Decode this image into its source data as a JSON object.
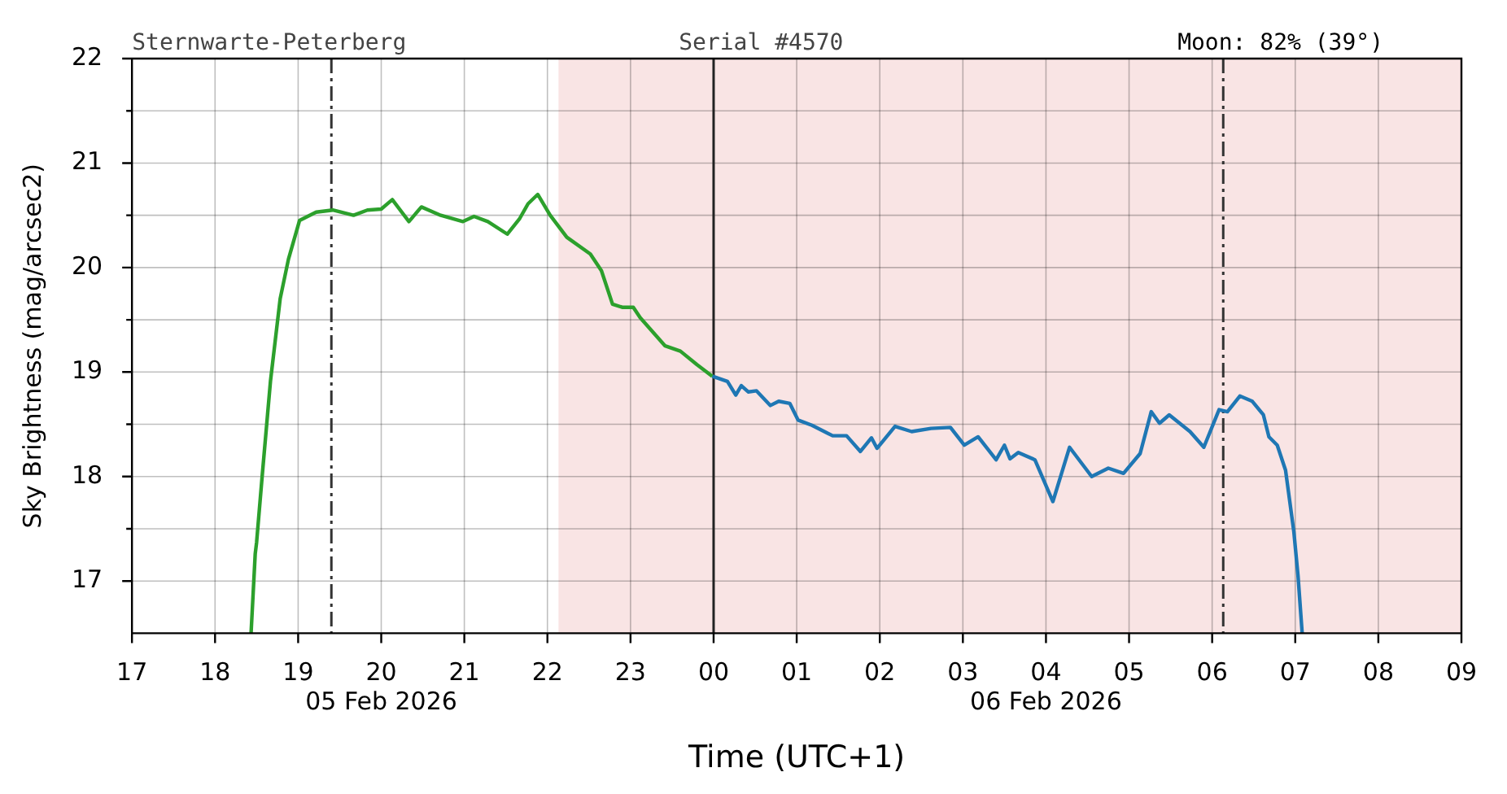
{
  "chart_data": {
    "type": "line",
    "xlabel": "Time (UTC+1)",
    "ylabel": "Sky Brightness (mag/arcsec2)",
    "annotations": [
      "Sternwarte-Peterberg",
      "Serial #4570",
      "Moon: 82% (39°)"
    ],
    "xlim": [
      "2026-02-05T17:00",
      "2026-02-06T09:00"
    ],
    "xticks": [
      {
        "value": "2026-02-05T17:00",
        "label": "17"
      },
      {
        "value": "2026-02-05T18:00",
        "label": "18"
      },
      {
        "value": "2026-02-05T19:00",
        "label": "19"
      },
      {
        "value": "2026-02-05T20:00",
        "label": "20\n05 Feb 2026"
      },
      {
        "value": "2026-02-05T21:00",
        "label": "21"
      },
      {
        "value": "2026-02-05T22:00",
        "label": "22"
      },
      {
        "value": "2026-02-05T23:00",
        "label": "23"
      },
      {
        "value": "2026-02-06T00:00",
        "label": "00"
      },
      {
        "value": "2026-02-06T01:00",
        "label": "01"
      },
      {
        "value": "2026-02-06T02:00",
        "label": "02"
      },
      {
        "value": "2026-02-06T03:00",
        "label": "03"
      },
      {
        "value": "2026-02-06T04:00",
        "label": "04\n06 Feb 2026"
      },
      {
        "value": "2026-02-06T05:00",
        "label": "05"
      },
      {
        "value": "2026-02-06T06:00",
        "label": "06"
      },
      {
        "value": "2026-02-06T07:00",
        "label": "07"
      },
      {
        "value": "2026-02-06T08:00",
        "label": "08"
      },
      {
        "value": "2026-02-06T09:00",
        "label": "09"
      }
    ],
    "ylim": [
      16.5,
      22
    ],
    "yticks": [
      17,
      {
        "value": 17.5,
        "label": null
      },
      18,
      {
        "value": 18.5,
        "label": null
      },
      19,
      {
        "value": 19.5,
        "label": null
      },
      20,
      {
        "value": 20.5,
        "label": null
      },
      21,
      {
        "value": 21.5,
        "label": null
      },
      22
    ],
    "grid": true,
    "legend": false,
    "marker": "none",
    "line_style": "solid",
    "series": [
      {
        "color": "#2ca02c",
        "x": [
          "2026-02-05T18:26",
          "2026-02-05T18:29",
          "2026-02-05T18:30",
          "2026-02-05T18:34",
          "2026-02-05T18:40",
          "2026-02-05T18:47",
          "2026-02-05T18:53",
          "2026-02-05T19:01",
          "2026-02-05T19:13",
          "2026-02-05T19:25",
          "2026-02-05T19:40",
          "2026-02-05T19:50",
          "2026-02-05T20:00",
          "2026-02-05T20:08",
          "2026-02-05T20:20",
          "2026-02-05T20:29",
          "2026-02-05T20:43",
          "2026-02-05T20:59",
          "2026-02-05T21:07",
          "2026-02-05T21:17",
          "2026-02-05T21:31",
          "2026-02-05T21:40",
          "2026-02-05T21:46",
          "2026-02-05T21:53",
          "2026-02-05T22:02",
          "2026-02-05T22:14",
          "2026-02-05T22:31",
          "2026-02-05T22:39",
          "2026-02-05T22:47",
          "2026-02-05T22:54",
          "2026-02-05T23:02",
          "2026-02-05T23:07",
          "2026-02-05T23:25",
          "2026-02-05T23:36",
          "2026-02-05T23:48",
          "2026-02-05T23:59"
        ],
        "values": [
          16.5,
          17.26,
          17.37,
          18.0,
          18.91,
          19.7,
          20.08,
          20.45,
          20.53,
          20.55,
          20.5,
          20.55,
          20.56,
          20.65,
          20.44,
          20.58,
          20.5,
          20.44,
          20.49,
          20.44,
          20.32,
          20.47,
          20.61,
          20.7,
          20.5,
          20.29,
          20.13,
          19.97,
          19.65,
          19.62,
          19.62,
          19.52,
          19.25,
          19.2,
          19.07,
          18.96
        ]
      },
      {
        "color": "#1f77b4",
        "x": [
          "2026-02-05T23:59",
          "2026-02-06T00:10",
          "2026-02-06T00:16",
          "2026-02-06T00:20",
          "2026-02-06T00:25",
          "2026-02-06T00:31",
          "2026-02-06T00:41",
          "2026-02-06T00:47",
          "2026-02-06T00:55",
          "2026-02-06T01:01",
          "2026-02-06T01:11",
          "2026-02-06T01:26",
          "2026-02-06T01:36",
          "2026-02-06T01:46",
          "2026-02-06T01:54",
          "2026-02-06T01:58",
          "2026-02-06T02:11",
          "2026-02-06T02:23",
          "2026-02-06T02:37",
          "2026-02-06T02:51",
          "2026-02-06T03:01",
          "2026-02-06T03:11",
          "2026-02-06T03:24",
          "2026-02-06T03:30",
          "2026-02-06T03:34",
          "2026-02-06T03:40",
          "2026-02-06T03:52",
          "2026-02-06T04:05",
          "2026-02-06T04:17",
          "2026-02-06T04:33",
          "2026-02-06T04:45",
          "2026-02-06T04:56",
          "2026-02-06T05:08",
          "2026-02-06T05:16",
          "2026-02-06T05:22",
          "2026-02-06T05:29",
          "2026-02-06T05:44",
          "2026-02-06T05:54",
          "2026-02-06T06:05",
          "2026-02-06T06:11",
          "2026-02-06T06:20",
          "2026-02-06T06:29",
          "2026-02-06T06:37",
          "2026-02-06T06:41",
          "2026-02-06T06:47",
          "2026-02-06T06:53",
          "2026-02-06T06:59",
          "2026-02-06T07:02",
          "2026-02-06T07:05"
        ],
        "values": [
          18.96,
          18.91,
          18.78,
          18.87,
          18.81,
          18.82,
          18.68,
          18.72,
          18.7,
          18.54,
          18.49,
          18.39,
          18.39,
          18.24,
          18.37,
          18.27,
          18.48,
          18.43,
          18.46,
          18.47,
          18.3,
          18.38,
          18.16,
          18.3,
          18.17,
          18.23,
          18.16,
          17.76,
          18.28,
          18.0,
          18.08,
          18.03,
          18.22,
          18.62,
          18.51,
          18.59,
          18.43,
          18.28,
          18.64,
          18.62,
          18.77,
          18.72,
          18.59,
          18.38,
          18.3,
          18.06,
          17.47,
          17.05,
          16.5
        ]
      }
    ],
    "ref_lines": [
      {
        "axis": "x",
        "value": "2026-02-05T19:24",
        "color": "#333333",
        "line_style": "dashed"
      },
      {
        "axis": "x",
        "value": "2026-02-06T00:00",
        "color": "#222222",
        "line_style": "solid"
      },
      {
        "axis": "x",
        "value": "2026-02-06T06:08",
        "color": "#333333",
        "line_style": "dashed"
      }
    ],
    "bands": [
      {
        "axis": "x",
        "from": "2026-02-05T22:08",
        "to": "2026-02-06T09:00",
        "color": "#f9e4e4"
      }
    ]
  }
}
